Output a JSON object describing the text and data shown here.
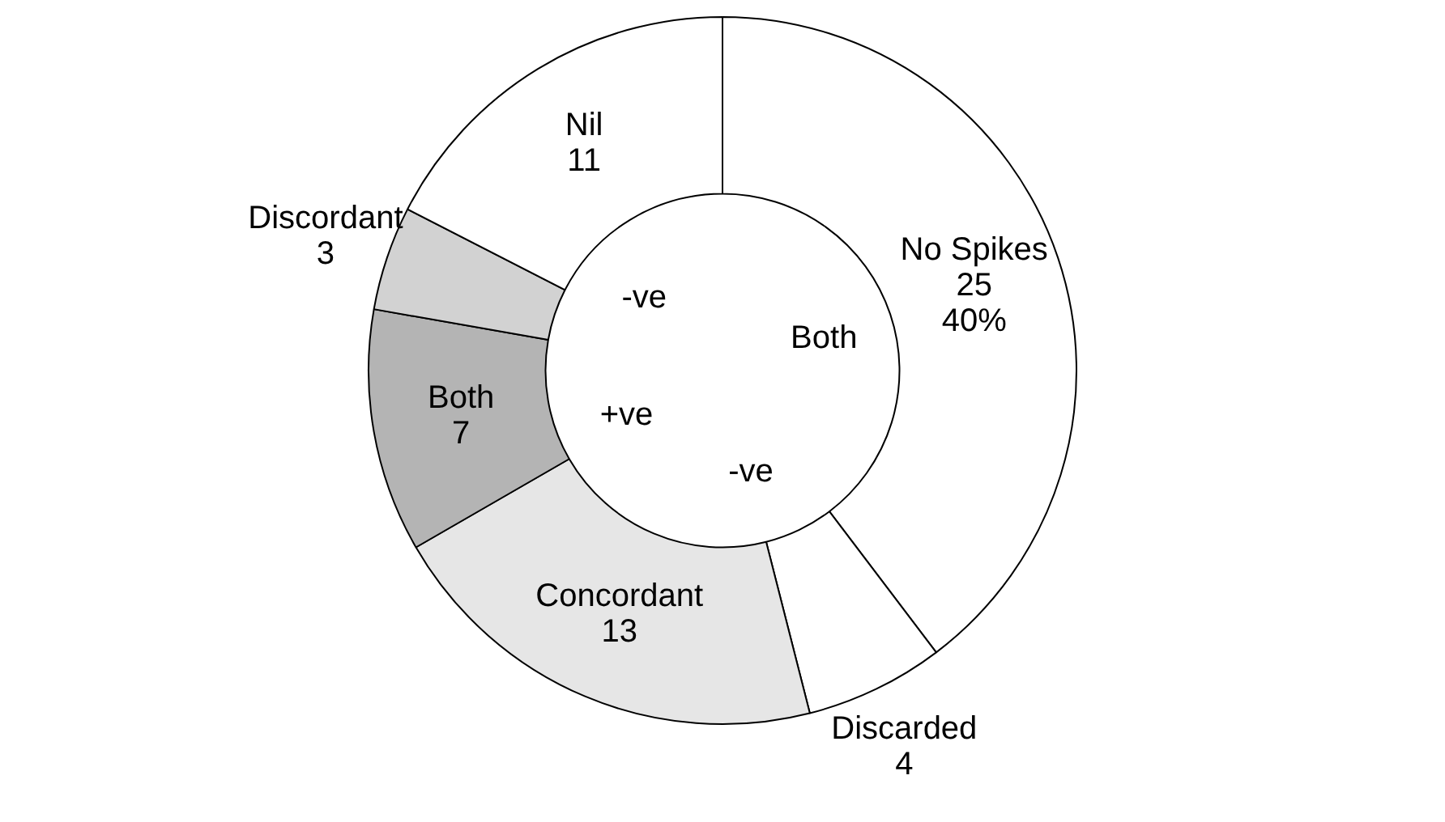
{
  "chart_data": {
    "type": "donut",
    "categories": [
      "No Spikes",
      "Discarded",
      "Concordant",
      "Both",
      "Discordant",
      "Nil"
    ],
    "values": [
      25,
      4,
      13,
      7,
      3,
      11
    ],
    "value_labels": [
      "25\n40%",
      "4",
      "13",
      "7",
      "3",
      "11"
    ],
    "colors": [
      "#ffffff",
      "#ffffff",
      "#e6e6e6",
      "#b4b4b4",
      "#d2d2d2",
      "#ffffff"
    ],
    "annotations": [
      "-ve",
      "Both",
      "+ve",
      "-ve"
    ],
    "legend": false
  }
}
